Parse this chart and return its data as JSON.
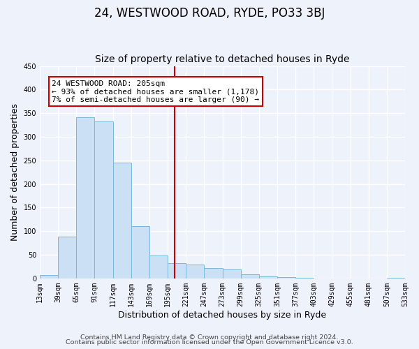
{
  "title": "24, WESTWOOD ROAD, RYDE, PO33 3BJ",
  "subtitle": "Size of property relative to detached houses in Ryde",
  "xlabel": "Distribution of detached houses by size in Ryde",
  "ylabel": "Number of detached properties",
  "bin_edges": [
    13,
    39,
    65,
    91,
    117,
    143,
    169,
    195,
    221,
    247,
    273,
    299,
    325,
    351,
    377,
    403,
    429,
    455,
    481,
    507,
    533
  ],
  "bar_heights": [
    7,
    89,
    342,
    333,
    245,
    111,
    49,
    33,
    30,
    22,
    19,
    8,
    4,
    2,
    1,
    0,
    0,
    0,
    0,
    1
  ],
  "bar_color": "#cce0f5",
  "bar_edgecolor": "#7ab8d9",
  "property_value": 205,
  "vline_color": "#cc0000",
  "annotation_line1": "24 WESTWOOD ROAD: 205sqm",
  "annotation_line2": "← 93% of detached houses are smaller (1,178)",
  "annotation_line3": "7% of semi-detached houses are larger (90) →",
  "annotation_box_edgecolor": "#cc0000",
  "annotation_box_facecolor": "#ffffff",
  "tick_labels": [
    "13sqm",
    "39sqm",
    "65sqm",
    "91sqm",
    "117sqm",
    "143sqm",
    "169sqm",
    "195sqm",
    "221sqm",
    "247sqm",
    "273sqm",
    "299sqm",
    "325sqm",
    "351sqm",
    "377sqm",
    "403sqm",
    "429sqm",
    "455sqm",
    "481sqm",
    "507sqm",
    "533sqm"
  ],
  "ylim": [
    0,
    450
  ],
  "yticks": [
    0,
    50,
    100,
    150,
    200,
    250,
    300,
    350,
    400,
    450
  ],
  "footer_line1": "Contains HM Land Registry data © Crown copyright and database right 2024.",
  "footer_line2": "Contains public sector information licensed under the Open Government Licence v3.0.",
  "bg_color": "#eef2fb",
  "grid_color": "#ffffff",
  "title_fontsize": 12,
  "subtitle_fontsize": 10,
  "axis_label_fontsize": 9,
  "tick_fontsize": 7,
  "footer_fontsize": 6.8,
  "annotation_fontsize": 8
}
